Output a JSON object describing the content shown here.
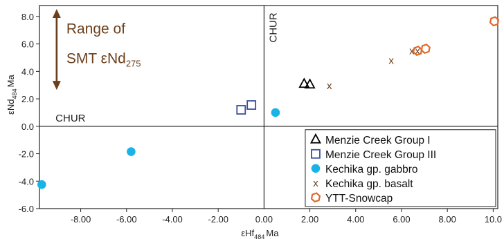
{
  "chart_data": {
    "type": "scatter",
    "title": "",
    "xlabel": {
      "main": "εHf",
      "sub": "484",
      "unit": "Ma"
    },
    "ylabel": {
      "main": "εNd",
      "sub": "484",
      "unit": "Ma"
    },
    "xlim": [
      -9.8,
      10.2
    ],
    "ylim": [
      -6.0,
      8.8
    ],
    "x_ticks": [
      -8.0,
      -6.0,
      -4.0,
      -2.0,
      0.0,
      2.0,
      4.0,
      6.0,
      8.0,
      10.0
    ],
    "x_tick_labels": [
      "-8.00",
      "-6.00",
      "-4.00",
      "-2.00",
      "0.00",
      "2.00",
      "4.00",
      "6.00",
      "8.00",
      "10.0"
    ],
    "y_ticks": [
      -6.0,
      -4.0,
      -2.0,
      0.0,
      2.0,
      4.0,
      6.0,
      8.0
    ],
    "y_tick_labels": [
      "-6.0",
      "-4.0",
      "-2.0",
      "0.0",
      "2.0",
      "4.0",
      "6.0",
      "8.0"
    ],
    "grid": false,
    "legend_position": "bottom-right",
    "reference_lines": [
      {
        "orientation": "horizontal",
        "value": 0.0,
        "label": "CHUR"
      },
      {
        "orientation": "vertical",
        "value": 0.0,
        "label": "CHUR"
      }
    ],
    "range_annotation": {
      "line1": "Range of",
      "line2_main": "SMT εNd",
      "line2_sub": "275",
      "from": 8.8,
      "to": 2.7,
      "color": "#6b3f1c"
    },
    "series": [
      {
        "name": "Menzie Creek Group I",
        "marker": "triangle",
        "color": "#000000",
        "points": [
          [
            1.75,
            3.1
          ],
          [
            2.0,
            3.05
          ]
        ]
      },
      {
        "name": "Menzie Creek Group III",
        "marker": "square",
        "color": "#3a4f9e",
        "points": [
          [
            -1.0,
            1.2
          ],
          [
            -0.55,
            1.55
          ]
        ]
      },
      {
        "name": "Kechika gp. gabbro",
        "marker": "circle",
        "color": "#1ab3e8",
        "points": [
          [
            -9.7,
            -4.25
          ],
          [
            -5.8,
            -1.85
          ],
          [
            0.5,
            1.0
          ]
        ]
      },
      {
        "name": "Kechika gp. basalt",
        "marker": "x",
        "color": "#6b3f1c",
        "points": [
          [
            2.85,
            2.95
          ],
          [
            5.55,
            4.8
          ],
          [
            6.45,
            5.5
          ],
          [
            6.7,
            5.5
          ]
        ]
      },
      {
        "name": "YTT-Snowcap",
        "marker": "hexagon",
        "color": "#e06a2c",
        "points": [
          [
            6.7,
            5.5
          ],
          [
            7.05,
            5.65
          ],
          [
            10.05,
            7.65
          ]
        ]
      }
    ]
  }
}
